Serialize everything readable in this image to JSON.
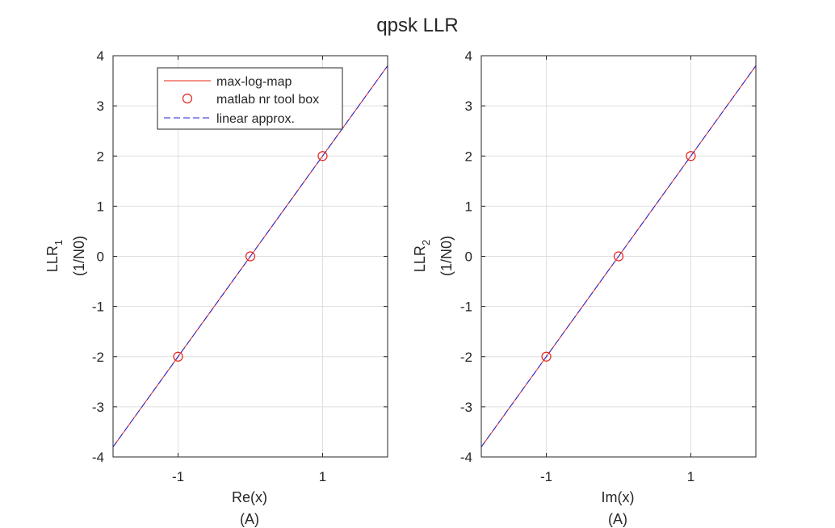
{
  "figure": {
    "title": "qpsk LLR"
  },
  "colors": {
    "red": "#e8211a",
    "blue": "#1f1fd6",
    "grid": "#dfdfdf",
    "axis": "#262626"
  },
  "legend": {
    "placement": "top-left",
    "entries": [
      {
        "label": "max-log-map",
        "style": "red solid line"
      },
      {
        "label": "matlab nr tool box",
        "style": "red circle marker"
      },
      {
        "label": "linear approx.",
        "style": "blue dashed line"
      }
    ]
  },
  "chart_data": [
    {
      "type": "line",
      "title": "",
      "xlabel": "Re(x)",
      "xlabel_unit": "(A)",
      "ylabel_main": "LLR",
      "ylabel_sub": "1",
      "ylabel_unit": "(1/N0)",
      "xlim": [
        -1.9,
        1.9
      ],
      "ylim": [
        -4,
        4
      ],
      "xticks": [
        -1,
        1
      ],
      "xtick_labels": [
        "-1",
        "1"
      ],
      "yticks": [
        -4,
        -3,
        -2,
        -1,
        0,
        1,
        2,
        3,
        4
      ],
      "ytick_labels": [
        "-4",
        "-3",
        "-2",
        "-1",
        "0",
        "1",
        "2",
        "3",
        "4"
      ],
      "grid": true,
      "series": [
        {
          "name": "max-log-map",
          "kind": "line",
          "color": "red",
          "x": [
            -1.9,
            1.9
          ],
          "y": [
            -3.8,
            3.8
          ]
        },
        {
          "name": "matlab nr tool box",
          "kind": "markers",
          "color": "red",
          "x": [
            -1,
            0,
            1
          ],
          "y": [
            -2,
            0,
            2
          ]
        },
        {
          "name": "linear approx.",
          "kind": "dashed",
          "color": "blue",
          "x": [
            -1.9,
            1.9
          ],
          "y": [
            -3.8,
            3.8
          ]
        }
      ]
    },
    {
      "type": "line",
      "title": "",
      "xlabel": "Im(x)",
      "xlabel_unit": "(A)",
      "ylabel_main": "LLR",
      "ylabel_sub": "2",
      "ylabel_unit": "(1/N0)",
      "xlim": [
        -1.9,
        1.9
      ],
      "ylim": [
        -4,
        4
      ],
      "xticks": [
        -1,
        1
      ],
      "xtick_labels": [
        "-1",
        "1"
      ],
      "yticks": [
        -4,
        -3,
        -2,
        -1,
        0,
        1,
        2,
        3,
        4
      ],
      "ytick_labels": [
        "-4",
        "-3",
        "-2",
        "-1",
        "0",
        "1",
        "2",
        "3",
        "4"
      ],
      "grid": true,
      "series": [
        {
          "name": "max-log-map",
          "kind": "line",
          "color": "red",
          "x": [
            -1.9,
            1.9
          ],
          "y": [
            -3.8,
            3.8
          ]
        },
        {
          "name": "matlab nr tool box",
          "kind": "markers",
          "color": "red",
          "x": [
            -1,
            0,
            1
          ],
          "y": [
            -2,
            0,
            2
          ]
        },
        {
          "name": "linear approx.",
          "kind": "dashed",
          "color": "blue",
          "x": [
            -1.9,
            1.9
          ],
          "y": [
            -3.8,
            3.8
          ]
        }
      ]
    }
  ]
}
